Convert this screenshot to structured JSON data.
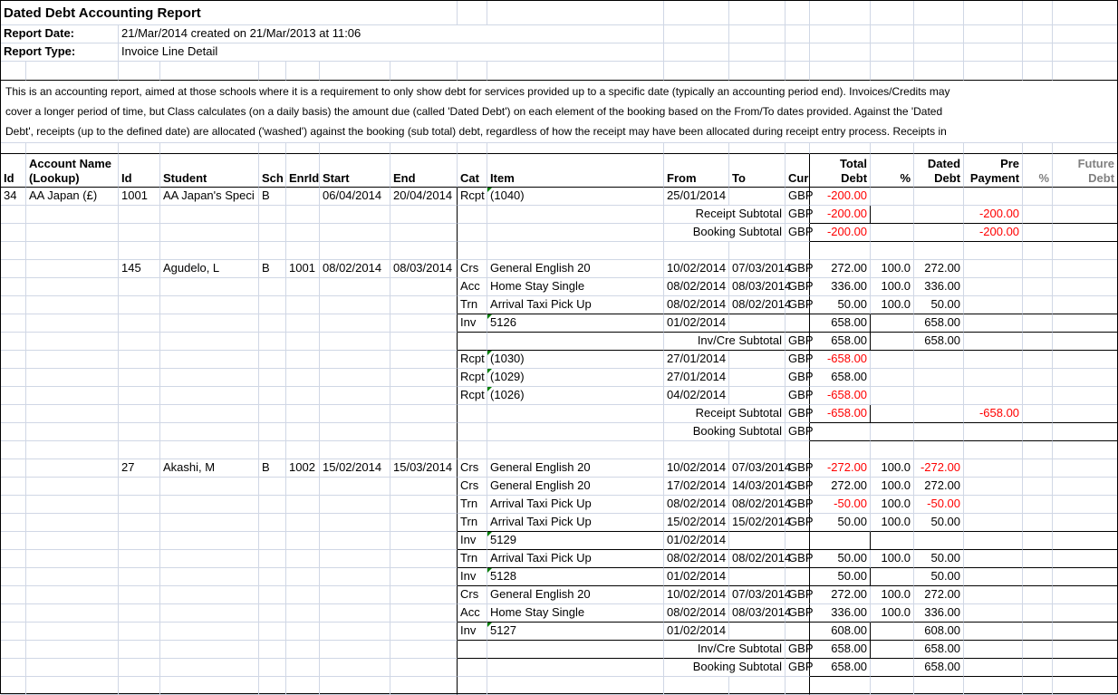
{
  "report": {
    "title": "Dated Debt Accounting Report",
    "report_date_label": "Report Date:",
    "report_date_value": "21/Mar/2014 created on 21/Mar/2013 at 11:06",
    "report_type_label": "Report Type:",
    "report_type_value": "Invoice Line Detail",
    "description_lines": [
      "This is an accounting report, aimed at those schools where it is a requirement to only show debt for services provided up to a specific date (typically an accounting period end). Invoices/Credits may",
      "cover a longer period of time, but Class calculates (on a daily basis) the amount due (called 'Dated Debt') on each element of the booking based on the From/To dates provided. Against the 'Dated",
      "Debt', receipts (up to the defined date) are allocated ('washed') against the booking (sub total) debt, regardless of how the receipt may have been allocated during receipt entry process. Receipts in"
    ]
  },
  "colors": {
    "negative": "#ff0000",
    "gridline": "#d0d7e5",
    "flag_green": "#008000",
    "muted_header": "#808080"
  },
  "table": {
    "columns": [
      {
        "key": "id",
        "label1": "",
        "label2": "Id"
      },
      {
        "key": "acct",
        "label1": "Account Name",
        "label2": "(Lookup)"
      },
      {
        "key": "id2",
        "label1": "",
        "label2": "Id"
      },
      {
        "key": "student",
        "label1": "",
        "label2": "Student"
      },
      {
        "key": "sch",
        "label1": "",
        "label2": "Sch"
      },
      {
        "key": "enrid",
        "label1": "",
        "label2": "EnrId"
      },
      {
        "key": "start",
        "label1": "",
        "label2": "Start"
      },
      {
        "key": "end",
        "label1": "",
        "label2": "End"
      },
      {
        "key": "cat",
        "label1": "",
        "label2": "Cat"
      },
      {
        "key": "item",
        "label1": "",
        "label2": "Item"
      },
      {
        "key": "from",
        "label1": "",
        "label2": "From"
      },
      {
        "key": "to",
        "label1": "",
        "label2": "To"
      },
      {
        "key": "cur",
        "label1": "",
        "label2": "Cur"
      },
      {
        "key": "td",
        "label1": "Total",
        "label2": "Debt",
        "align": "right"
      },
      {
        "key": "pct",
        "label1": "",
        "label2": "%",
        "align": "right"
      },
      {
        "key": "dd",
        "label1": "Dated",
        "label2": "Debt",
        "align": "right"
      },
      {
        "key": "pre",
        "label1": "Pre",
        "label2": "Payment",
        "align": "right"
      },
      {
        "key": "pct2",
        "label1": "",
        "label2": "%",
        "align": "right",
        "muted": true
      },
      {
        "key": "fd",
        "label1": "Future",
        "label2": "Debt",
        "align": "right",
        "muted": true
      }
    ],
    "rows": [
      {
        "type": "item",
        "id": "34",
        "acct": "AA Japan (£)",
        "id2": "1001",
        "student": "AA Japan's Speci",
        "sch": "B",
        "start": "06/04/2014",
        "end": "20/04/2014",
        "cat": "Rcpt",
        "item": "(1040)",
        "flag": true,
        "from": "25/01/2014",
        "cur": "GBP",
        "td": "-200.00"
      },
      {
        "type": "rsub",
        "label": "Receipt Subtotal",
        "cur": "GBP",
        "td": "-200.00",
        "pre": "-200.00"
      },
      {
        "type": "bsub",
        "label": "Booking Subtotal",
        "cur": "GBP",
        "td": "-200.00",
        "pre": "-200.00"
      },
      {
        "type": "blank"
      },
      {
        "type": "item",
        "id2": "145",
        "student": "Agudelo, L",
        "sch": "B",
        "enrid": "1001",
        "start": "08/02/2014",
        "end": "08/03/2014",
        "cat": "Crs",
        "item": "General English 20",
        "from": "10/02/2014",
        "to": "07/03/2014",
        "cur": "GBP",
        "td": "272.00",
        "pct": "100.0",
        "dd": "272.00"
      },
      {
        "type": "item",
        "cat": "Acc",
        "item": "Home Stay Single",
        "from": "08/02/2014",
        "to": "08/03/2014",
        "cur": "GBP",
        "td": "336.00",
        "pct": "100.0",
        "dd": "336.00"
      },
      {
        "type": "item",
        "cat": "Trn",
        "item": "Arrival Taxi Pick Up",
        "from": "08/02/2014",
        "to": "08/02/2014",
        "cur": "GBP",
        "td": "50.00",
        "pct": "100.0",
        "dd": "50.00"
      },
      {
        "type": "inv",
        "cat": "Inv",
        "item": "5126",
        "flag": true,
        "from": "01/02/2014",
        "td": "658.00",
        "dd": "658.00"
      },
      {
        "type": "invcre",
        "label": "Inv/Cre Subtotal",
        "cur": "GBP",
        "td": "658.00",
        "dd": "658.00"
      },
      {
        "type": "item",
        "cat": "Rcpt",
        "item": "(1030)",
        "flag": true,
        "from": "27/01/2014",
        "cur": "GBP",
        "td": "-658.00"
      },
      {
        "type": "item",
        "cat": "Rcpt",
        "item": "(1029)",
        "flag": true,
        "from": "27/01/2014",
        "cur": "GBP",
        "td": "658.00"
      },
      {
        "type": "item",
        "cat": "Rcpt",
        "item": "(1026)",
        "flag": true,
        "from": "04/02/2014",
        "cur": "GBP",
        "td": "-658.00"
      },
      {
        "type": "rsub",
        "label": "Receipt Subtotal",
        "cur": "GBP",
        "td": "-658.00",
        "pre": "-658.00"
      },
      {
        "type": "bsub",
        "label": "Booking Subtotal",
        "cur": "GBP"
      },
      {
        "type": "blank"
      },
      {
        "type": "item",
        "id2": "27",
        "student": "Akashi, M",
        "sch": "B",
        "enrid": "1002",
        "start": "15/02/2014",
        "end": "15/03/2014",
        "cat": "Crs",
        "item": "General English 20",
        "from": "10/02/2014",
        "to": "07/03/2014",
        "cur": "GBP",
        "td": "-272.00",
        "pct": "100.0",
        "dd": "-272.00"
      },
      {
        "type": "item",
        "cat": "Crs",
        "item": "General English 20",
        "from": "17/02/2014",
        "to": "14/03/2014",
        "cur": "GBP",
        "td": "272.00",
        "pct": "100.0",
        "dd": "272.00"
      },
      {
        "type": "item",
        "cat": "Trn",
        "item": "Arrival Taxi Pick Up",
        "from": "08/02/2014",
        "to": "08/02/2014",
        "cur": "GBP",
        "td": "-50.00",
        "pct": "100.0",
        "dd": "-50.00"
      },
      {
        "type": "item",
        "cat": "Trn",
        "item": "Arrival Taxi Pick Up",
        "from": "15/02/2014",
        "to": "15/02/2014",
        "cur": "GBP",
        "td": "50.00",
        "pct": "100.0",
        "dd": "50.00"
      },
      {
        "type": "inv",
        "cat": "Inv",
        "item": "5129",
        "flag": true,
        "from": "01/02/2014"
      },
      {
        "type": "item",
        "cat": "Trn",
        "item": "Arrival Taxi Pick Up",
        "from": "08/02/2014",
        "to": "08/02/2014",
        "cur": "GBP",
        "td": "50.00",
        "pct": "100.0",
        "dd": "50.00"
      },
      {
        "type": "inv",
        "cat": "Inv",
        "item": "5128",
        "flag": true,
        "from": "01/02/2014",
        "td": "50.00",
        "dd": "50.00"
      },
      {
        "type": "item",
        "cat": "Crs",
        "item": "General English 20",
        "from": "10/02/2014",
        "to": "07/03/2014",
        "cur": "GBP",
        "td": "272.00",
        "pct": "100.0",
        "dd": "272.00"
      },
      {
        "type": "item",
        "cat": "Acc",
        "item": "Home Stay Single",
        "from": "08/02/2014",
        "to": "08/03/2014",
        "cur": "GBP",
        "td": "336.00",
        "pct": "100.0",
        "dd": "336.00"
      },
      {
        "type": "inv",
        "cat": "Inv",
        "item": "5127",
        "flag": true,
        "from": "01/02/2014",
        "td": "608.00",
        "dd": "608.00"
      },
      {
        "type": "invcre",
        "label": "Inv/Cre Subtotal",
        "cur": "GBP",
        "td": "658.00",
        "dd": "658.00"
      },
      {
        "type": "bsub",
        "label": "Booking Subtotal",
        "cur": "GBP",
        "td": "658.00",
        "dd": "658.00"
      },
      {
        "type": "blank"
      }
    ]
  }
}
